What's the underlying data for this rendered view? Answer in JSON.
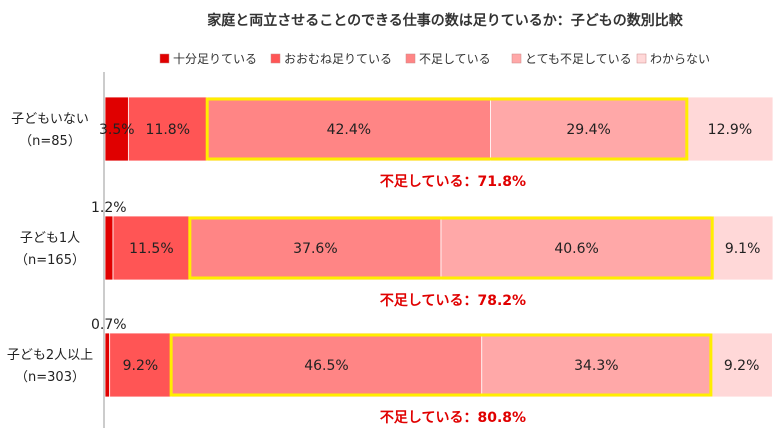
{
  "chart_data": {
    "type": "bar",
    "orientation": "horizontal",
    "stacked": "percent",
    "title": "家庭と両立させることのできる仕事の数は足りているか：子どもの数別比較",
    "legend_position": "top",
    "colors": [
      "#e00000",
      "#ff5555",
      "#ff8585",
      "#ffa8a8",
      "#ffd8d8"
    ],
    "categories": [
      {
        "name": "子どもいない",
        "n": "（n=85）"
      },
      {
        "name": "子ども1人",
        "n": "（n=165）"
      },
      {
        "name": "子ども2人以上",
        "n": "（n=303）"
      }
    ],
    "series": [
      {
        "name": "十分足りている",
        "values": [
          3.5,
          1.2,
          0.7
        ],
        "labels": [
          "3.5%",
          "1.2%",
          "0.7%"
        ]
      },
      {
        "name": "おおむね足りている",
        "values": [
          11.8,
          11.5,
          9.2
        ],
        "labels": [
          "11.8%",
          "11.5%",
          "9.2%"
        ]
      },
      {
        "name": "不足している",
        "values": [
          42.4,
          37.6,
          46.5
        ],
        "labels": [
          "42.4%",
          "37.6%",
          "46.5%"
        ]
      },
      {
        "name": "とても不足している",
        "values": [
          29.4,
          40.6,
          34.3
        ],
        "labels": [
          "29.4%",
          "40.6%",
          "34.3%"
        ]
      },
      {
        "name": "わからない",
        "values": [
          12.9,
          9.1,
          9.2
        ],
        "labels": [
          "12.9%",
          "9.1%",
          "9.2%"
        ]
      }
    ],
    "annotations": [
      "不足している：71.8%",
      "不足している：78.2%",
      "不足している：80.8%"
    ],
    "xlim": [
      0,
      100
    ]
  }
}
